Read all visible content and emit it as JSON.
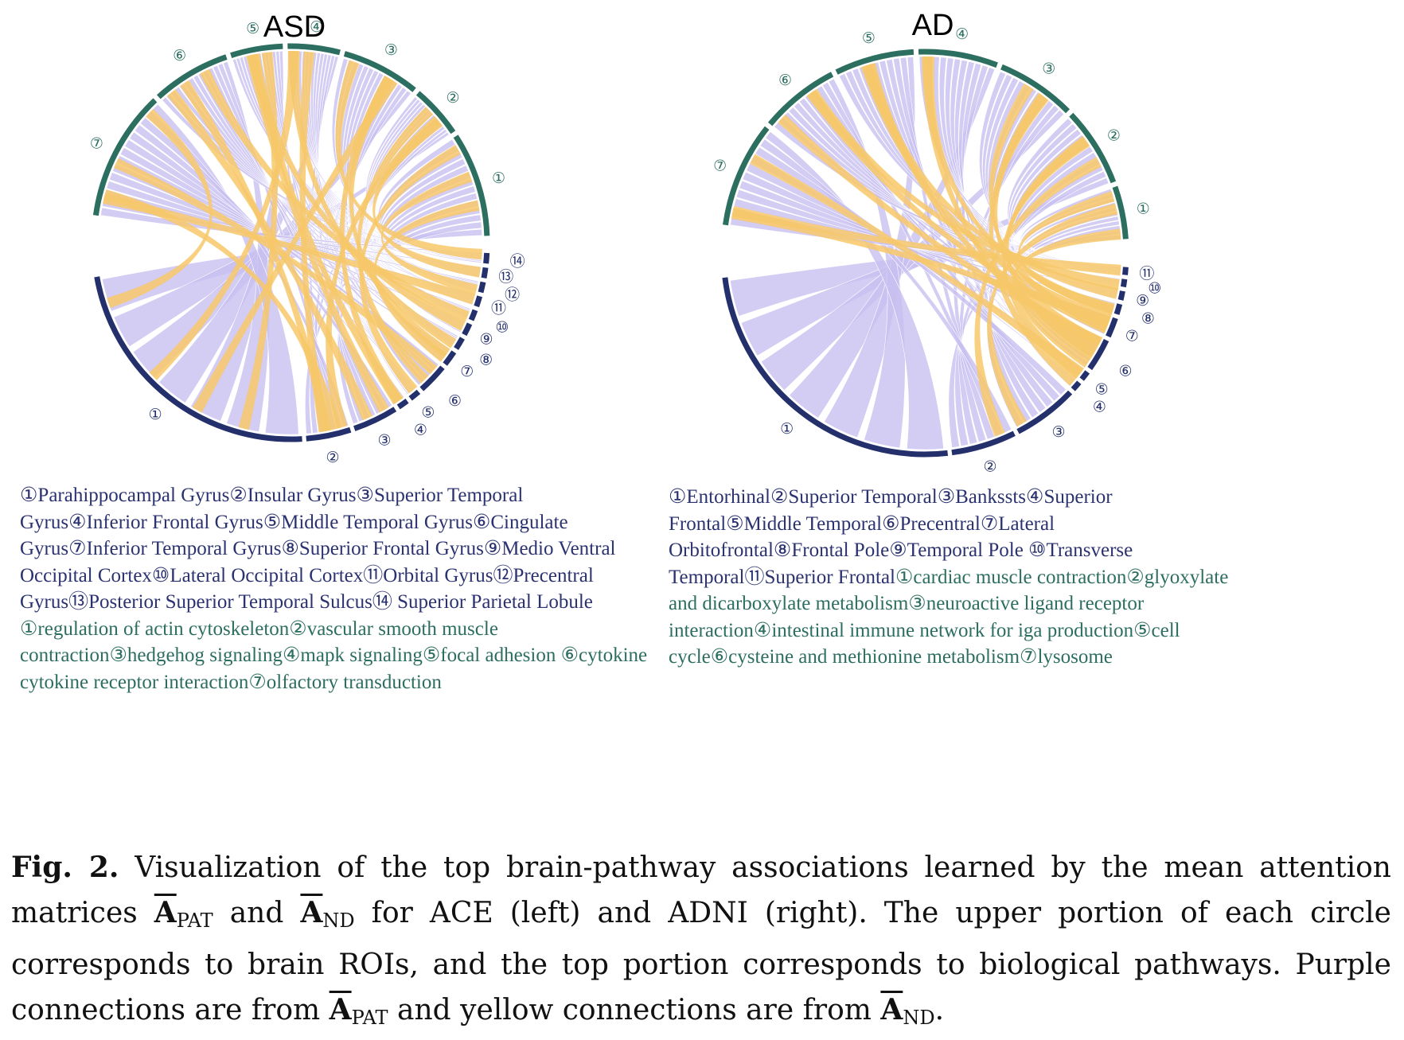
{
  "colors": {
    "roi_arc": "#24306b",
    "pathway_arc": "#2c6e60",
    "purple_link": "#c8bff0",
    "yellow_link": "#f7c86a"
  },
  "figures": [
    {
      "title": "ASD",
      "roi_labels": [
        "①",
        "②",
        "③",
        "④",
        "⑤",
        "⑥",
        "⑦",
        "⑧",
        "⑨",
        "⑩",
        "⑪",
        "⑫",
        "⑬",
        "⑭"
      ],
      "pathway_labels": [
        "①",
        "②",
        "③",
        "④",
        "⑤",
        "⑥",
        "⑦"
      ],
      "legend": {
        "rois": [
          "①Parahippocampal Gyrus",
          "②Insular Gyrus",
          "③Superior Temporal Gyrus",
          "④Inferior Frontal Gyrus",
          "⑤Middle Temporal Gyrus",
          "⑥Cingulate Gyrus",
          "⑦Inferior Temporal Gyrus",
          "⑧Superior Frontal Gyrus",
          "⑨Medio Ventral Occipital Cortex",
          "⑩Lateral Occipital Cortex",
          "⑪Orbital Gyrus",
          "⑫Precentral Gyrus",
          "⑬Posterior Superior Temporal Sulcus",
          "⑭ Superior Parietal Lobule "
        ],
        "pathways": [
          "①regulation of actin cytoskeleton",
          "②vascular smooth muscle contraction",
          "③hedgehog signaling",
          "④mapk signaling",
          "⑤focal adhesion ",
          "⑥cytokine cytokine receptor interaction",
          "⑦olfactory transduction"
        ]
      }
    },
    {
      "title": "AD",
      "roi_labels": [
        "①",
        "②",
        "③",
        "④",
        "⑤",
        "⑥",
        "⑦",
        "⑧",
        "⑨",
        "⑩",
        "⑪"
      ],
      "pathway_labels": [
        "①",
        "②",
        "③",
        "④",
        "⑤",
        "⑥",
        "⑦"
      ],
      "legend": {
        "rois": [
          "①Entorhinal",
          "②Superior Temporal",
          "③Bankssts",
          "④Superior Frontal",
          "⑤Middle Temporal",
          "⑥Precentral",
          "⑦Lateral Orbitofrontal",
          "⑧Frontal Pole",
          "⑨Temporal Pole ",
          "⑩Transverse Temporal",
          "⑪Superior Frontal"
        ],
        "pathways": [
          "①cardiac muscle contraction",
          "②glyoxylate and dicarboxylate metabolism",
          "③neuroactive ligand receptor interaction",
          "④intestinal immune network for iga production",
          "⑤cell cycle",
          "⑥cysteine and methionine metabolism",
          "⑦lysosome"
        ]
      }
    }
  ],
  "caption": {
    "lead": "Fig. 2.",
    "t1": " Visualization of the top brain-pathway associations learned by the mean attention matrices ",
    "a": "A",
    "pat": "PAT",
    "and": " and ",
    "nd": "ND",
    "t2": " for ACE (left) and ADNI (right). The upper portion of each circle corresponds to brain ROIs, and the top portion corresponds to biological pathways. Purple connections are from ",
    "t3": " and yellow connections are from ",
    "t4": "."
  }
}
